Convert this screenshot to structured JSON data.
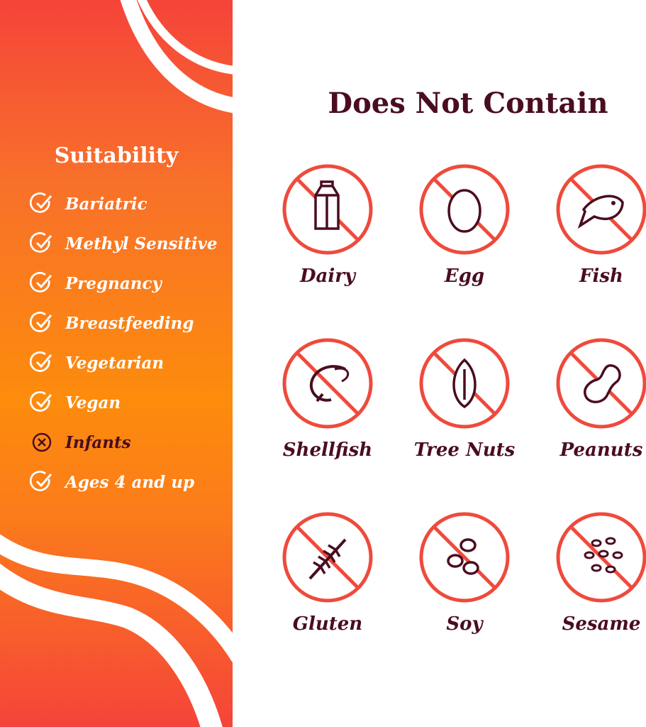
{
  "colors": {
    "accent_red": "#ef4a3c",
    "text_maroon": "#4a0d1f",
    "orange": "#fd8c0c"
  },
  "suitability": {
    "title": "Suitability",
    "items": [
      {
        "label": "Bariatric",
        "status": "yes"
      },
      {
        "label": "Methyl Sensitive",
        "status": "yes"
      },
      {
        "label": "Pregnancy",
        "status": "yes"
      },
      {
        "label": "Breastfeeding",
        "status": "yes"
      },
      {
        "label": "Vegetarian",
        "status": "yes"
      },
      {
        "label": "Vegan",
        "status": "yes"
      },
      {
        "label": "Infants",
        "status": "no"
      },
      {
        "label": "Ages 4 and up",
        "status": "yes"
      }
    ]
  },
  "does_not_contain": {
    "title": "Does Not Contain",
    "items": [
      {
        "label": "Dairy",
        "icon": "milk-carton-icon"
      },
      {
        "label": "Egg",
        "icon": "egg-icon"
      },
      {
        "label": "Fish",
        "icon": "fish-icon"
      },
      {
        "label": "Shellfish",
        "icon": "shrimp-icon"
      },
      {
        "label": "Tree Nuts",
        "icon": "almond-icon"
      },
      {
        "label": "Peanuts",
        "icon": "peanut-icon"
      },
      {
        "label": "Gluten",
        "icon": "wheat-icon"
      },
      {
        "label": "Soy",
        "icon": "soybean-icon"
      },
      {
        "label": "Sesame",
        "icon": "sesame-icon"
      }
    ]
  }
}
